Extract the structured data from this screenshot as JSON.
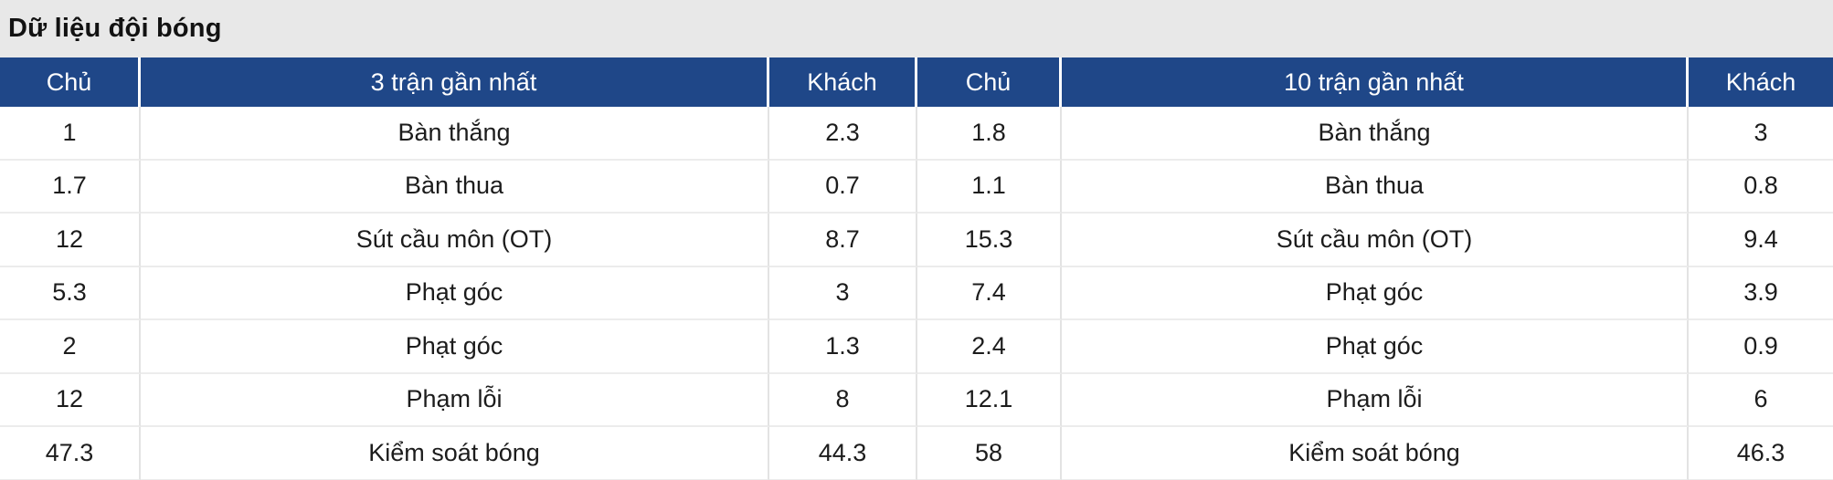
{
  "page": {
    "title": "Dữ liệu đội bóng"
  },
  "colors": {
    "header_bg": "#1f4788",
    "header_text": "#ffffff",
    "title_band_bg": "#e8e8e8",
    "body_bg": "#ffffff",
    "grid_line": "#e3e3e3",
    "text": "#1c1c1c"
  },
  "table": {
    "headers": [
      "Chủ",
      "3 trận gần nhất",
      "Khách",
      "Chủ",
      "10 trận gần nhất",
      "Khách"
    ],
    "rows": [
      {
        "cells": [
          "1",
          "Bàn thắng",
          "2.3",
          "1.8",
          "Bàn thắng",
          "3"
        ]
      },
      {
        "cells": [
          "1.7",
          "Bàn thua",
          "0.7",
          "1.1",
          "Bàn thua",
          "0.8"
        ]
      },
      {
        "cells": [
          "12",
          "Sút cầu môn (OT)",
          "8.7",
          "15.3",
          "Sút cầu môn (OT)",
          "9.4"
        ]
      },
      {
        "cells": [
          "5.3",
          "Phạt góc",
          "3",
          "7.4",
          "Phạt góc",
          "3.9"
        ]
      },
      {
        "cells": [
          "2",
          "Phạt góc",
          "1.3",
          "2.4",
          "Phạt góc",
          "0.9"
        ]
      },
      {
        "cells": [
          "12",
          "Phạm lỗi",
          "8",
          "12.1",
          "Phạm lỗi",
          "6"
        ]
      },
      {
        "cells": [
          "47.3",
          "Kiểm soát bóng",
          "44.3",
          "58",
          "Kiểm soát bóng",
          "46.3"
        ]
      }
    ]
  }
}
